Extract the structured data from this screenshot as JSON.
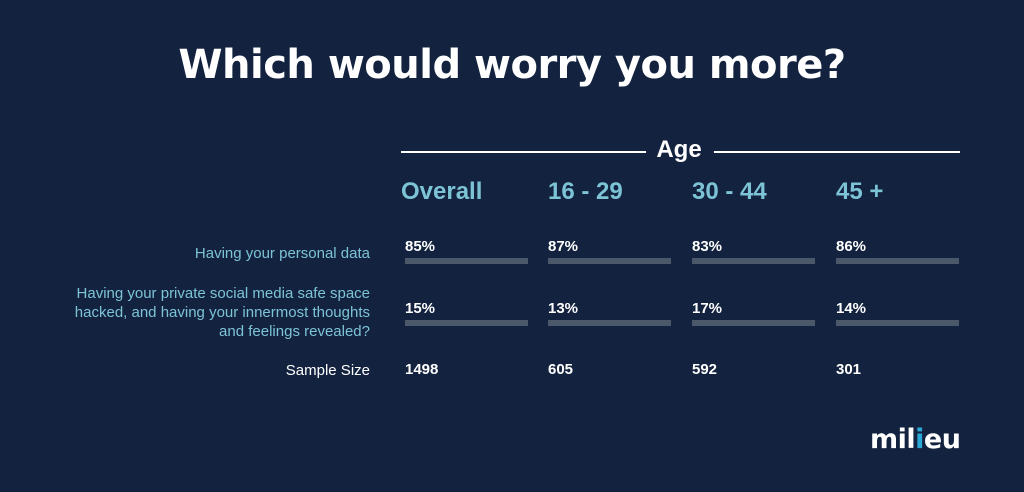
{
  "chart_data": {
    "type": "table",
    "title": "Which would worry you more?",
    "group_label": "Age",
    "columns": [
      "Overall",
      "16 - 29",
      "30 - 44",
      "45 +"
    ],
    "rows": [
      {
        "label": "Having your personal data",
        "values": [
          "85%",
          "87%",
          "83%",
          "86%"
        ],
        "numeric": [
          85,
          87,
          83,
          86
        ]
      },
      {
        "label": "Having your private social media safe space hacked, and having your innermost thoughts and feelings revealed?",
        "label_lines": [
          "Having your private social media safe space",
          "hacked, and having your innermost thoughts",
          "and feelings revealed?"
        ],
        "values": [
          "15%",
          "13%",
          "17%",
          "14%"
        ],
        "numeric": [
          15,
          13,
          17,
          14
        ]
      }
    ],
    "sample_size": {
      "label": "Sample Size",
      "values": [
        "1498",
        "605",
        "592",
        "301"
      ]
    }
  },
  "logo": {
    "text": "milieu"
  },
  "colors": {
    "background": "#13233f",
    "accent": "#7dc3d6",
    "bar_track": "#4a5869",
    "logo_dot": "#2aa9d6"
  }
}
